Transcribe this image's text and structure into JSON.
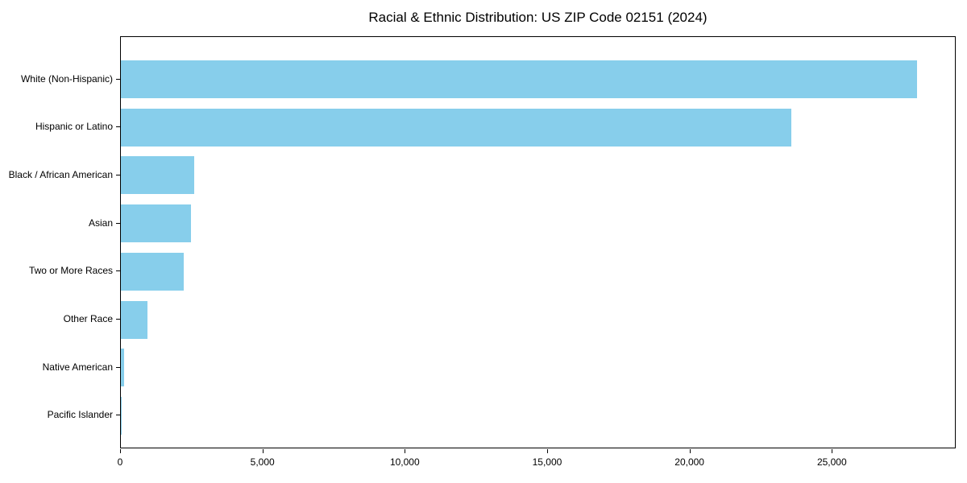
{
  "chart_data": {
    "type": "bar",
    "orientation": "horizontal",
    "title": "Racial & Ethnic Distribution: US ZIP Code 02151 (2024)",
    "categories": [
      "White (Non-Hispanic)",
      "Hispanic or Latino",
      "Black / African American",
      "Asian",
      "Two or More Races",
      "Other Race",
      "Native American",
      "Pacific Islander"
    ],
    "values": [
      27950,
      23560,
      2580,
      2460,
      2210,
      940,
      120,
      15
    ],
    "xlabel": "",
    "ylabel": "",
    "xlim": [
      0,
      29350
    ],
    "xticks": [
      0,
      5000,
      10000,
      15000,
      20000,
      25000
    ],
    "xtick_labels": [
      "0",
      "5,000",
      "10,000",
      "15,000",
      "20,000",
      "25,000"
    ],
    "bar_color": "#87CEEB",
    "grid": false,
    "legend": "none"
  }
}
